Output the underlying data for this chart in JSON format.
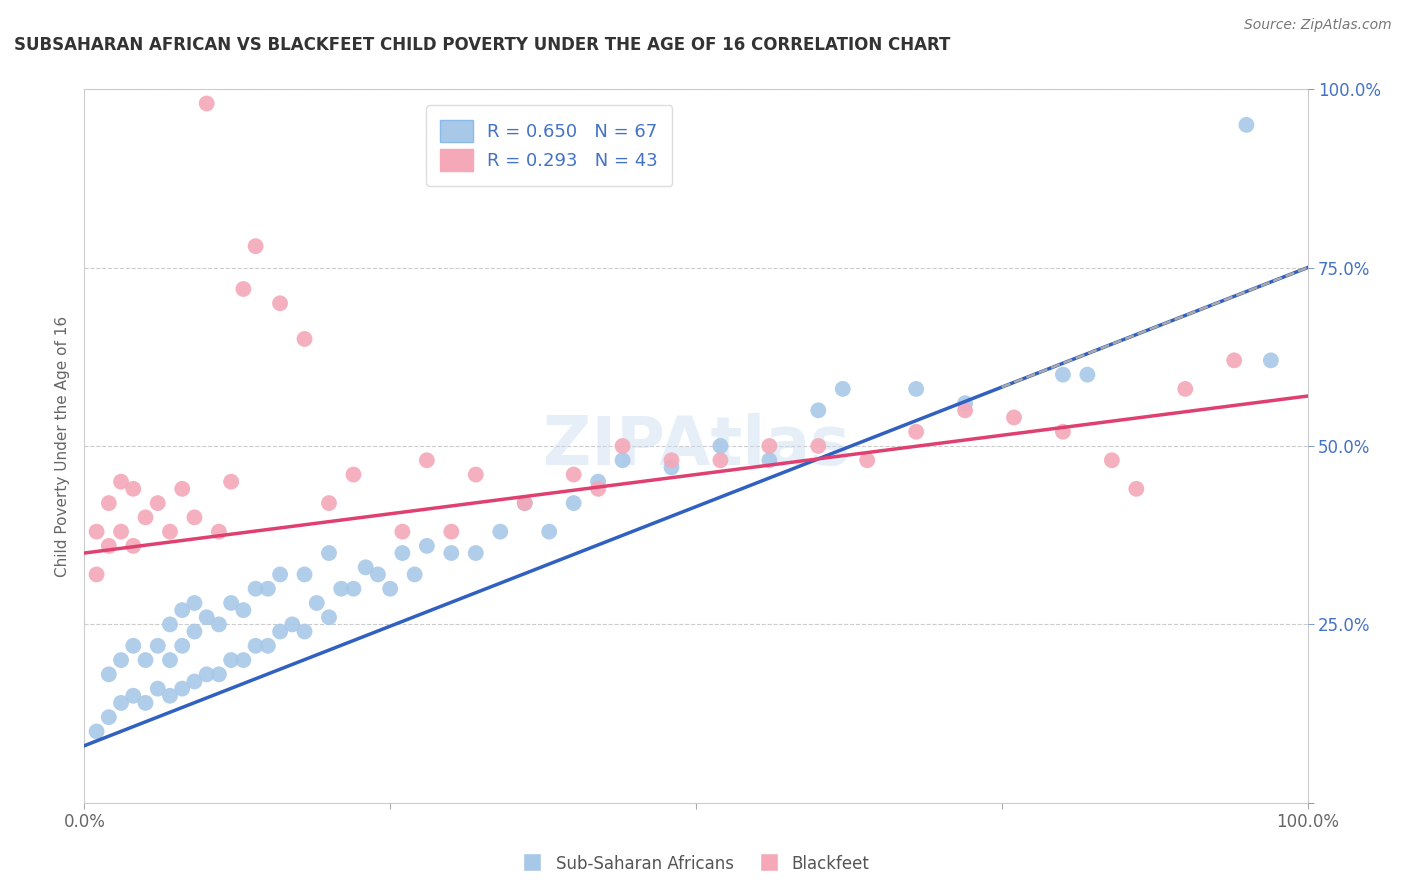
{
  "title": "SUBSAHARAN AFRICAN VS BLACKFEET CHILD POVERTY UNDER THE AGE OF 16 CORRELATION CHART",
  "source": "Source: ZipAtlas.com",
  "ylabel": "Child Poverty Under the Age of 16",
  "xlim": [
    0,
    1
  ],
  "ylim": [
    0,
    1
  ],
  "xticklabels": [
    "0.0%",
    "",
    "",
    "",
    "100.0%"
  ],
  "yticklabels_right": [
    "",
    "25.0%",
    "50.0%",
    "75.0%",
    "100.0%"
  ],
  "blue_color": "#A8C8E8",
  "pink_color": "#F4A8B8",
  "blue_line_color": "#3060C0",
  "pink_line_color": "#E04070",
  "dashed_line_color": "#AAAAAA",
  "watermark": "ZIPAtlas",
  "blue_r": 0.65,
  "blue_n": 67,
  "pink_r": 0.293,
  "pink_n": 43,
  "blue_line_intercept": 0.08,
  "blue_line_slope": 0.67,
  "pink_line_intercept": 0.35,
  "pink_line_slope": 0.22,
  "blue_scatter_x": [
    0.01,
    0.02,
    0.02,
    0.03,
    0.03,
    0.04,
    0.04,
    0.05,
    0.05,
    0.06,
    0.06,
    0.07,
    0.07,
    0.07,
    0.08,
    0.08,
    0.08,
    0.09,
    0.09,
    0.09,
    0.1,
    0.1,
    0.11,
    0.11,
    0.12,
    0.12,
    0.13,
    0.13,
    0.14,
    0.14,
    0.15,
    0.15,
    0.16,
    0.16,
    0.17,
    0.18,
    0.18,
    0.19,
    0.2,
    0.2,
    0.21,
    0.22,
    0.23,
    0.24,
    0.25,
    0.26,
    0.27,
    0.28,
    0.3,
    0.32,
    0.34,
    0.36,
    0.38,
    0.4,
    0.42,
    0.44,
    0.48,
    0.52,
    0.56,
    0.6,
    0.62,
    0.68,
    0.72,
    0.8,
    0.82,
    0.95,
    0.97
  ],
  "blue_scatter_y": [
    0.1,
    0.12,
    0.18,
    0.14,
    0.2,
    0.15,
    0.22,
    0.14,
    0.2,
    0.16,
    0.22,
    0.15,
    0.2,
    0.25,
    0.16,
    0.22,
    0.27,
    0.17,
    0.24,
    0.28,
    0.18,
    0.26,
    0.18,
    0.25,
    0.2,
    0.28,
    0.2,
    0.27,
    0.22,
    0.3,
    0.22,
    0.3,
    0.24,
    0.32,
    0.25,
    0.24,
    0.32,
    0.28,
    0.26,
    0.35,
    0.3,
    0.3,
    0.33,
    0.32,
    0.3,
    0.35,
    0.32,
    0.36,
    0.35,
    0.35,
    0.38,
    0.42,
    0.38,
    0.42,
    0.45,
    0.48,
    0.47,
    0.5,
    0.48,
    0.55,
    0.58,
    0.58,
    0.56,
    0.6,
    0.6,
    0.95,
    0.62
  ],
  "pink_scatter_x": [
    0.01,
    0.01,
    0.02,
    0.02,
    0.03,
    0.03,
    0.04,
    0.04,
    0.05,
    0.06,
    0.07,
    0.08,
    0.09,
    0.1,
    0.11,
    0.12,
    0.13,
    0.14,
    0.16,
    0.18,
    0.2,
    0.22,
    0.26,
    0.28,
    0.3,
    0.32,
    0.36,
    0.4,
    0.42,
    0.44,
    0.48,
    0.52,
    0.56,
    0.6,
    0.64,
    0.68,
    0.72,
    0.76,
    0.8,
    0.84,
    0.86,
    0.9,
    0.94
  ],
  "pink_scatter_y": [
    0.32,
    0.38,
    0.36,
    0.42,
    0.38,
    0.45,
    0.36,
    0.44,
    0.4,
    0.42,
    0.38,
    0.44,
    0.4,
    0.98,
    0.38,
    0.45,
    0.72,
    0.78,
    0.7,
    0.65,
    0.42,
    0.46,
    0.38,
    0.48,
    0.38,
    0.46,
    0.42,
    0.46,
    0.44,
    0.5,
    0.48,
    0.48,
    0.5,
    0.5,
    0.48,
    0.52,
    0.55,
    0.54,
    0.52,
    0.48,
    0.44,
    0.58,
    0.62
  ]
}
